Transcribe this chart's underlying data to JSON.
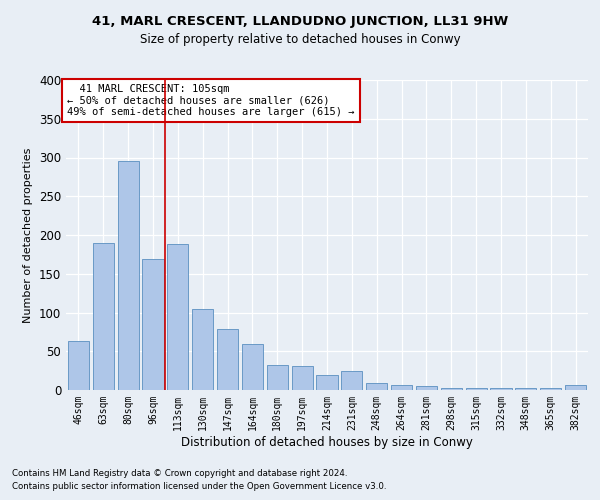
{
  "title1": "41, MARL CRESCENT, LLANDUDNO JUNCTION, LL31 9HW",
  "title2": "Size of property relative to detached houses in Conwy",
  "xlabel": "Distribution of detached houses by size in Conwy",
  "ylabel": "Number of detached properties",
  "categories": [
    "46sqm",
    "63sqm",
    "80sqm",
    "96sqm",
    "113sqm",
    "130sqm",
    "147sqm",
    "164sqm",
    "180sqm",
    "197sqm",
    "214sqm",
    "231sqm",
    "248sqm",
    "264sqm",
    "281sqm",
    "298sqm",
    "315sqm",
    "332sqm",
    "348sqm",
    "365sqm",
    "382sqm"
  ],
  "values": [
    63,
    190,
    296,
    169,
    188,
    105,
    79,
    60,
    32,
    31,
    20,
    24,
    9,
    7,
    5,
    3,
    2,
    2,
    2,
    3,
    7
  ],
  "bar_color": "#aec6e8",
  "bar_edge_color": "#5a8fc0",
  "vline_x_index": 3.5,
  "vline_color": "#cc0000",
  "annotation_text": "  41 MARL CRESCENT: 105sqm\n← 50% of detached houses are smaller (626)\n49% of semi-detached houses are larger (615) →",
  "annotation_box_color": "#ffffff",
  "annotation_box_edge_color": "#cc0000",
  "footnote1": "Contains HM Land Registry data © Crown copyright and database right 2024.",
  "footnote2": "Contains public sector information licensed under the Open Government Licence v3.0.",
  "bg_color": "#e8eef5",
  "plot_bg_color": "#e8eef5",
  "ylim": [
    0,
    400
  ],
  "yticks": [
    0,
    50,
    100,
    150,
    200,
    250,
    300,
    350,
    400
  ]
}
